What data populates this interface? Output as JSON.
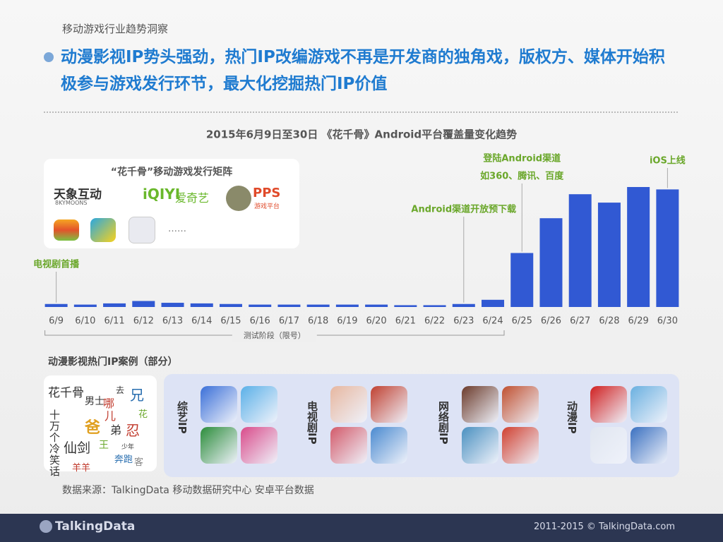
{
  "header": {
    "section": "移动游戏行业趋势洞察",
    "headline": "动漫影视IP势头强劲，热门IP改编游戏不再是开发商的独角戏，版权方、媒体开始积极参与游戏发行环节，最大化挖掘热门IP价值"
  },
  "chart_data": {
    "type": "bar",
    "title": "2015年6月9日至30日 《花千骨》Android平台覆盖量变化趋势",
    "categories": [
      "6/9",
      "6/10",
      "6/11",
      "6/12",
      "6/13",
      "6/14",
      "6/15",
      "6/16",
      "6/17",
      "6/18",
      "6/19",
      "6/20",
      "6/21",
      "6/22",
      "6/23",
      "6/24",
      "6/25",
      "6/26",
      "6/27",
      "6/28",
      "6/29",
      "6/30"
    ],
    "values": [
      2.5,
      2,
      3,
      5,
      3.5,
      3,
      2.5,
      2,
      2,
      2,
      2,
      2,
      1.5,
      1.5,
      2.5,
      6,
      45,
      74,
      94,
      87,
      100,
      98
    ],
    "color": "#3159d3",
    "phase_label": "测试阶段（限号）",
    "annotations": [
      {
        "lines": [
          "电视剧首播"
        ],
        "category": "6/9"
      },
      {
        "lines": [
          "Android渠道开放预下载"
        ],
        "category": "6/23"
      },
      {
        "lines": [
          "登陆Android渠道",
          "如360、腾讯、百度"
        ],
        "category": "6/25"
      },
      {
        "lines": [
          "iOS上线"
        ],
        "category": "6/30"
      }
    ]
  },
  "matrix": {
    "title": "“花千骨”移动游戏发行矩阵",
    "logos": [
      "天象互动",
      "8KYMOONS",
      "爱奇艺",
      "iQIYI",
      "PPS",
      "游戏平台"
    ],
    "more": "……"
  },
  "ip_cases": {
    "title": "动漫影视热门IP案例（部分）",
    "word_cloud": [
      "花千骨",
      "男士",
      "兄",
      "哪",
      "儿",
      "爸",
      "弟",
      "忍",
      "仙剑",
      "十万个冷笑话",
      "羊羊",
      "奔跑",
      "王",
      "去",
      "花",
      "客",
      "少年"
    ],
    "groups": [
      "综艺IP",
      "电视剧IP",
      "网络剧IP",
      "动漫IP"
    ]
  },
  "source": "数据来源：TalkingData 移动数据研究中心 安卓平台数据",
  "footer": {
    "brand": "TalkingData",
    "copyright": "2011-2015 © TalkingData.com"
  }
}
